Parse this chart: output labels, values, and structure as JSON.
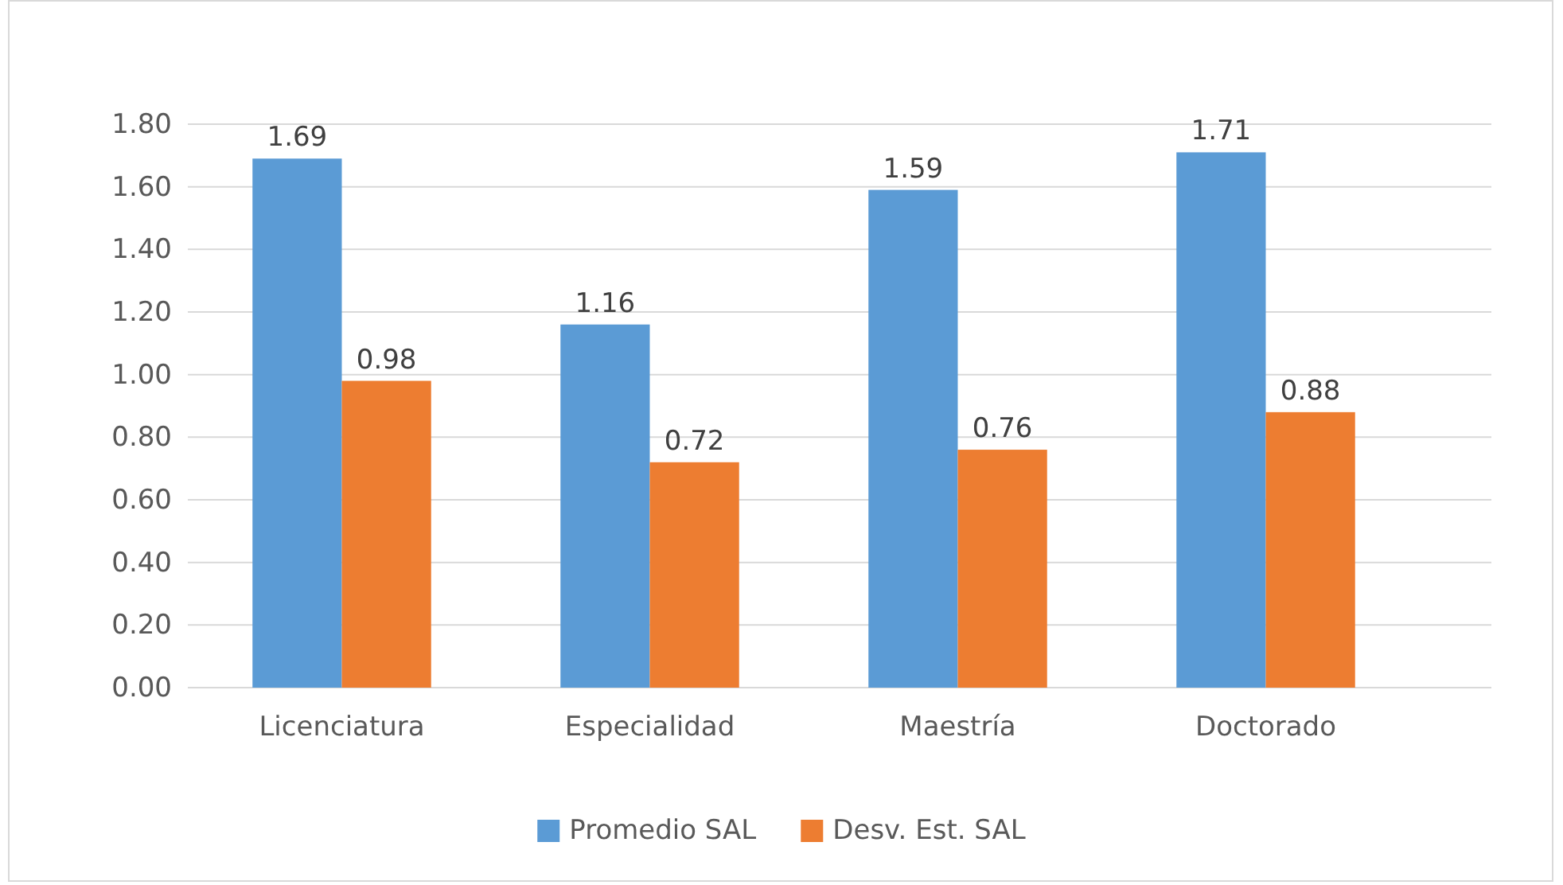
{
  "chart_data": {
    "type": "bar",
    "categories": [
      "Licenciatura",
      "Especialidad",
      "Maestría",
      "Doctorado"
    ],
    "series": [
      {
        "name": "Promedio SAL",
        "color": "#5b9bd5",
        "values": [
          1.69,
          1.16,
          1.59,
          1.71
        ]
      },
      {
        "name": "Desv. Est. SAL",
        "color": "#ed7d31",
        "values": [
          0.98,
          0.72,
          0.76,
          0.88
        ]
      }
    ],
    "ylim": [
      0,
      1.8
    ],
    "yticks": [
      {
        "value": 0,
        "label": "0.00"
      },
      {
        "value": 0.2,
        "label": "0.20"
      },
      {
        "value": 0.4,
        "label": "0.40"
      },
      {
        "value": 0.6,
        "label": "0.60"
      },
      {
        "value": 0.8,
        "label": "0.80"
      },
      {
        "value": 1,
        "label": "1.00"
      },
      {
        "value": 1.2,
        "label": "1.20"
      },
      {
        "value": 1.4,
        "label": "1.40"
      },
      {
        "value": 1.6,
        "label": "1.60"
      },
      {
        "value": 1.8,
        "label": "1.80"
      }
    ],
    "grid": "y",
    "legend": "bottom",
    "data_labels": true
  }
}
